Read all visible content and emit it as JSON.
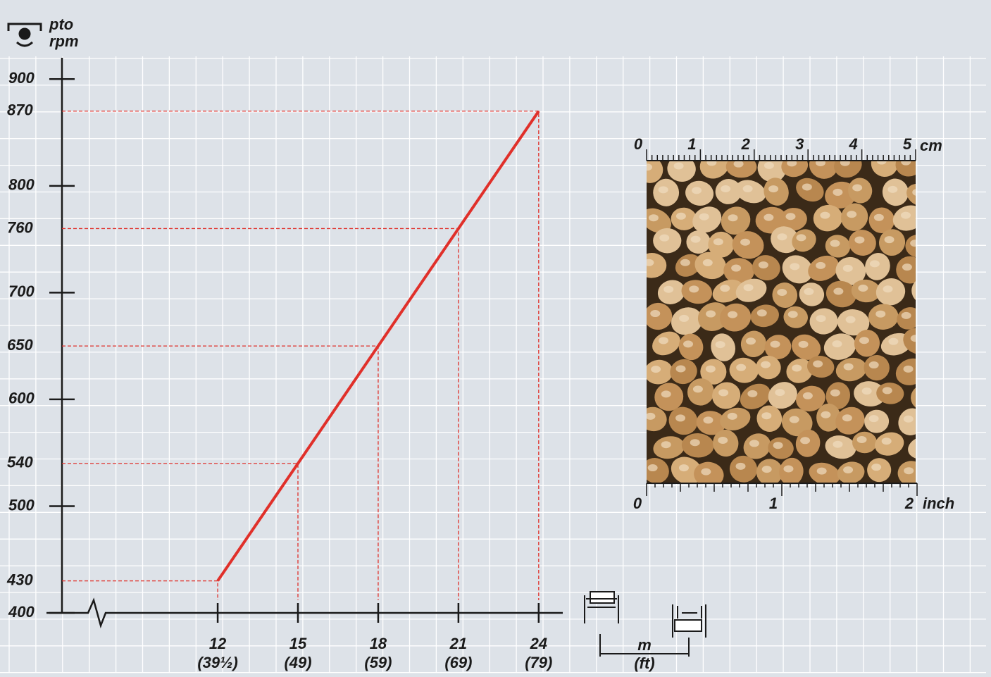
{
  "chart_data": {
    "type": "line",
    "y_label": [
      "pto",
      "rpm"
    ],
    "x_label": [
      "m",
      "(ft)"
    ],
    "x": [
      12,
      15,
      18,
      21,
      24
    ],
    "series": [
      {
        "color": "#e0302a",
        "values": [
          430,
          540,
          650,
          760,
          870
        ]
      }
    ],
    "xlim": [
      5.6,
      24.9
    ],
    "xticks": [
      12,
      15,
      18,
      21,
      24
    ],
    "xtick_ft_labels": [
      "(39½)",
      "(49)",
      "(59)",
      "(69)",
      "(79)"
    ],
    "ylim": [
      400,
      920
    ],
    "yticks": [
      400,
      500,
      600,
      700,
      800,
      900
    ],
    "grid": true,
    "scale": {
      "cm_labels": [
        "0",
        "1",
        "2",
        "3",
        "4",
        "5"
      ],
      "cm_unit": "cm",
      "inch_labels": [
        "0",
        "1",
        "2"
      ],
      "inch_unit": "inch"
    }
  }
}
